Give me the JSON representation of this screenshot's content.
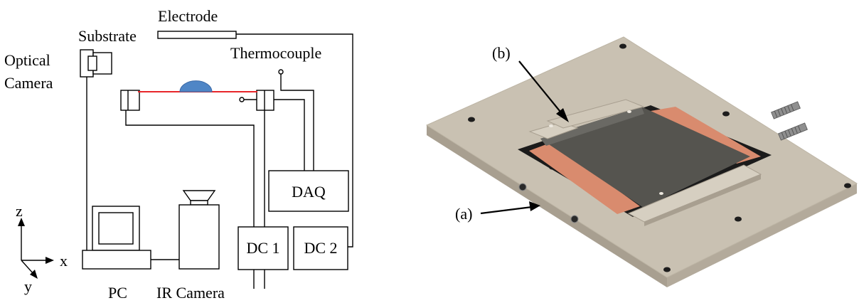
{
  "schematic": {
    "labels": {
      "electrode": "Electrode",
      "substrate": "Substrate",
      "optical_camera_line1": "Optical",
      "optical_camera_line2": "Camera",
      "thermocouple": "Thermocouple",
      "daq": "DAQ",
      "dc1": "DC 1",
      "dc2": "DC 2",
      "pc": "PC",
      "ir_camera": "IR Camera",
      "axis_x": "x",
      "axis_y": "y",
      "axis_z": "z"
    },
    "colors": {
      "substrate_line": "#e8262a",
      "droplet": "#4f86c6"
    }
  },
  "render": {
    "labels": {
      "a": "(a)",
      "b": "(b)"
    },
    "colors": {
      "plate_top": "#c9c1b2",
      "plate_side": "#a89f90",
      "copper": "#d98b6e",
      "membrane": "#55544f"
    }
  }
}
